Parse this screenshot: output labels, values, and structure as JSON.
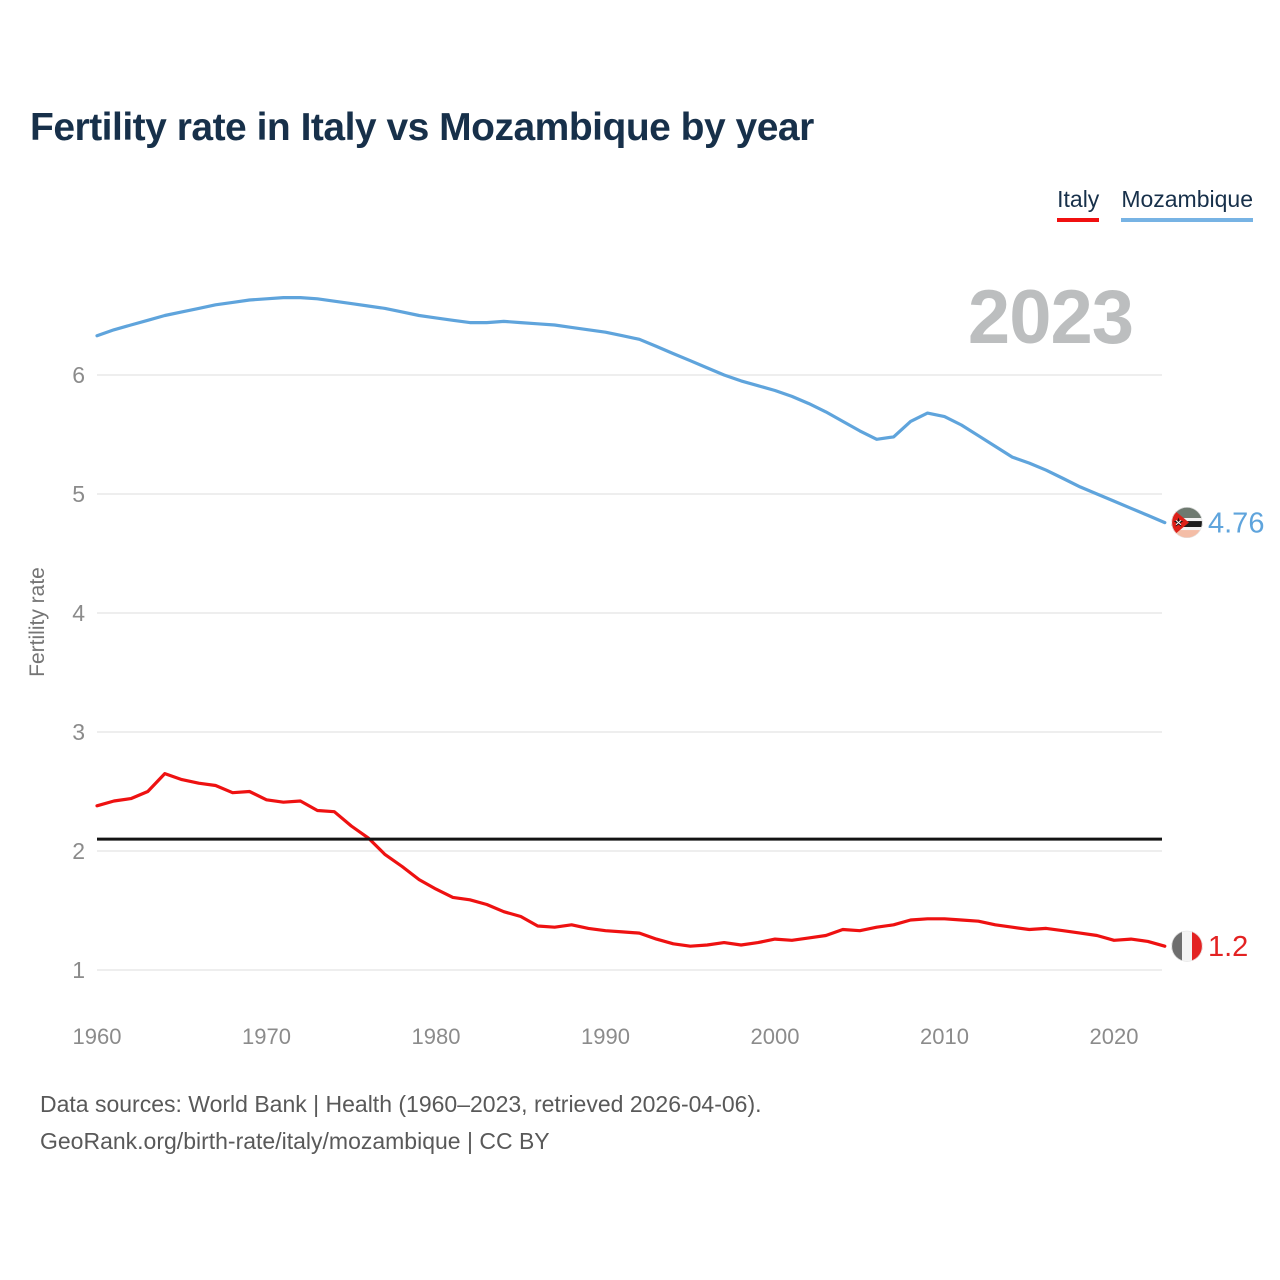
{
  "header": {
    "title": "Fertility rate in Italy vs Mozambique by year"
  },
  "legend": [
    {
      "label": "Italy",
      "underline_color": "#f01010"
    },
    {
      "label": "Mozambique",
      "underline_color": "#77b3e4"
    }
  ],
  "watermark": "2023",
  "chart_data": {
    "type": "line",
    "title": "Fertility rate in Italy vs Mozambique by year",
    "xlabel": "",
    "ylabel": "Fertility rate",
    "x_ticks": [
      1960,
      1970,
      1980,
      1990,
      2000,
      2010,
      2020
    ],
    "y_ticks": [
      1,
      2,
      3,
      4,
      5,
      6
    ],
    "xlim": [
      1960,
      2023
    ],
    "ylim": [
      1,
      6.8
    ],
    "grid": "horizontal",
    "legend_position": "top-right",
    "reference_line": {
      "value": 2.1,
      "color": "#141414"
    },
    "years": [
      1960,
      1961,
      1962,
      1963,
      1964,
      1965,
      1966,
      1967,
      1968,
      1969,
      1970,
      1971,
      1972,
      1973,
      1974,
      1975,
      1976,
      1977,
      1978,
      1979,
      1980,
      1981,
      1982,
      1983,
      1984,
      1985,
      1986,
      1987,
      1988,
      1989,
      1990,
      1991,
      1992,
      1993,
      1994,
      1995,
      1996,
      1997,
      1998,
      1999,
      2000,
      2001,
      2002,
      2003,
      2004,
      2005,
      2006,
      2007,
      2008,
      2009,
      2010,
      2011,
      2012,
      2013,
      2014,
      2015,
      2016,
      2017,
      2018,
      2019,
      2020,
      2021,
      2022,
      2023
    ],
    "series": [
      {
        "name": "Mozambique",
        "color": "#5fa4dc",
        "label_color": "#5fa4dc",
        "end_label": "4.76",
        "flag": "mozambique-flag-icon",
        "values": [
          6.33,
          6.38,
          6.42,
          6.46,
          6.5,
          6.53,
          6.56,
          6.59,
          6.61,
          6.63,
          6.64,
          6.65,
          6.65,
          6.64,
          6.62,
          6.6,
          6.58,
          6.56,
          6.53,
          6.5,
          6.48,
          6.46,
          6.44,
          6.44,
          6.45,
          6.44,
          6.43,
          6.42,
          6.4,
          6.38,
          6.36,
          6.33,
          6.3,
          6.24,
          6.18,
          6.12,
          6.06,
          6.0,
          5.95,
          5.91,
          5.87,
          5.82,
          5.76,
          5.69,
          5.61,
          5.53,
          5.46,
          5.48,
          5.61,
          5.68,
          5.65,
          5.58,
          5.49,
          5.4,
          5.31,
          5.26,
          5.2,
          5.13,
          5.06,
          5.0,
          4.94,
          4.88,
          4.82,
          4.76
        ]
      },
      {
        "name": "Italy",
        "color": "#ee1111",
        "label_color": "#e32222",
        "end_label": "1.2",
        "flag": "italy-flag-icon",
        "values": [
          2.38,
          2.42,
          2.44,
          2.5,
          2.65,
          2.6,
          2.57,
          2.55,
          2.49,
          2.5,
          2.43,
          2.41,
          2.42,
          2.34,
          2.33,
          2.21,
          2.11,
          1.97,
          1.87,
          1.76,
          1.68,
          1.61,
          1.59,
          1.55,
          1.49,
          1.45,
          1.37,
          1.36,
          1.38,
          1.35,
          1.33,
          1.32,
          1.31,
          1.26,
          1.22,
          1.2,
          1.21,
          1.23,
          1.21,
          1.23,
          1.26,
          1.25,
          1.27,
          1.29,
          1.34,
          1.33,
          1.36,
          1.38,
          1.42,
          1.43,
          1.43,
          1.42,
          1.41,
          1.38,
          1.36,
          1.34,
          1.35,
          1.33,
          1.31,
          1.29,
          1.25,
          1.26,
          1.24,
          1.2
        ]
      }
    ]
  },
  "footer": {
    "line1": "Data sources: World Bank | Health (1960–2023, retrieved 2026-04-06).",
    "line2": "GeoRank.org/birth-rate/italy/mozambique | CC BY"
  }
}
